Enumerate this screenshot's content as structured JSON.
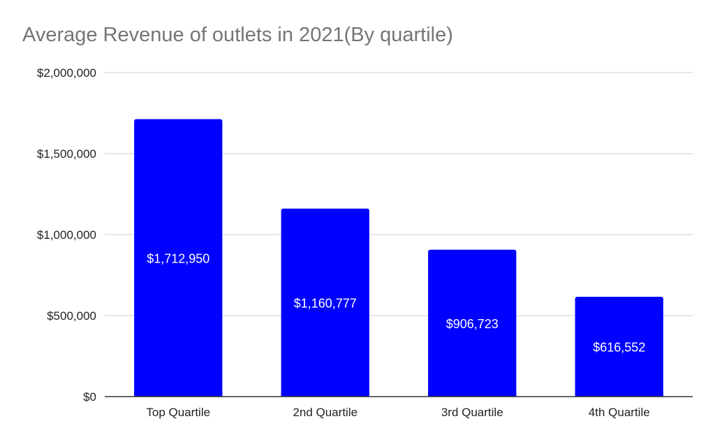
{
  "chart_data": {
    "type": "bar",
    "title": "Average Revenue of outlets in 2021(By quartile)",
    "categories": [
      "Top Quartile",
      "2nd Quartile",
      "3rd Quartile",
      "4th Quartile"
    ],
    "values": [
      1712950,
      1160777,
      906723,
      616552
    ],
    "value_labels": [
      "$1,712,950",
      "$1,160,777",
      "$906,723",
      "$616,552"
    ],
    "ylim": [
      0,
      2000000
    ],
    "yticks": [
      0,
      500000,
      1000000,
      1500000,
      2000000
    ],
    "ytick_labels": [
      "$0",
      "$500,000",
      "$1,000,000",
      "$1,500,000",
      "$2,000,000"
    ],
    "grid": true,
    "legend": "none",
    "colors": {
      "bar": "#0000ff",
      "grid": "#cccccc",
      "axis": "#333333",
      "title": "#757575"
    }
  }
}
